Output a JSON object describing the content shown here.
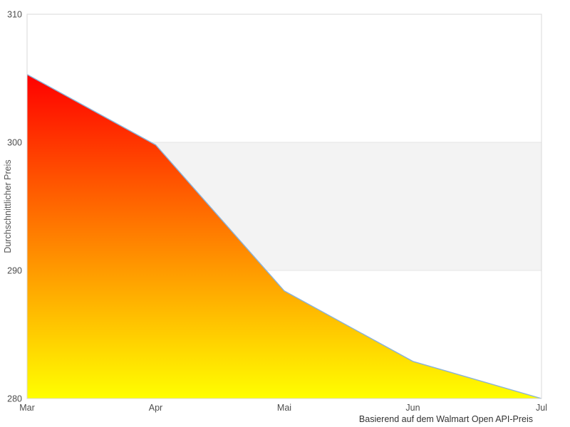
{
  "chart_data": {
    "type": "area",
    "categories": [
      "Mar",
      "Apr",
      "Mai",
      "Jun",
      "Jul"
    ],
    "values": [
      305.3,
      299.8,
      288.4,
      282.9,
      280.0
    ],
    "ylabel": "Durchschnittlicher Preis",
    "caption": "Basierend auf dem Walmart Open API-Preis",
    "ylim": [
      280,
      310
    ],
    "yticks": [
      280,
      290,
      300,
      310
    ],
    "plot_band": {
      "from": 290,
      "to": 300,
      "color": "#f3f3f3"
    },
    "legend": "none",
    "grid": "y-gridlines-at-ticks",
    "colors": {
      "area_gradient_top": "#ff0000",
      "area_gradient_bottom": "#ffff00",
      "line": "#8ab2d8",
      "grid_line": "#e6e6e6",
      "plot_border": "#d8d8d8",
      "tick_label": "#4d4d4d",
      "axis_title": "#555555",
      "caption_text": "#333333",
      "background": "#ffffff"
    }
  }
}
